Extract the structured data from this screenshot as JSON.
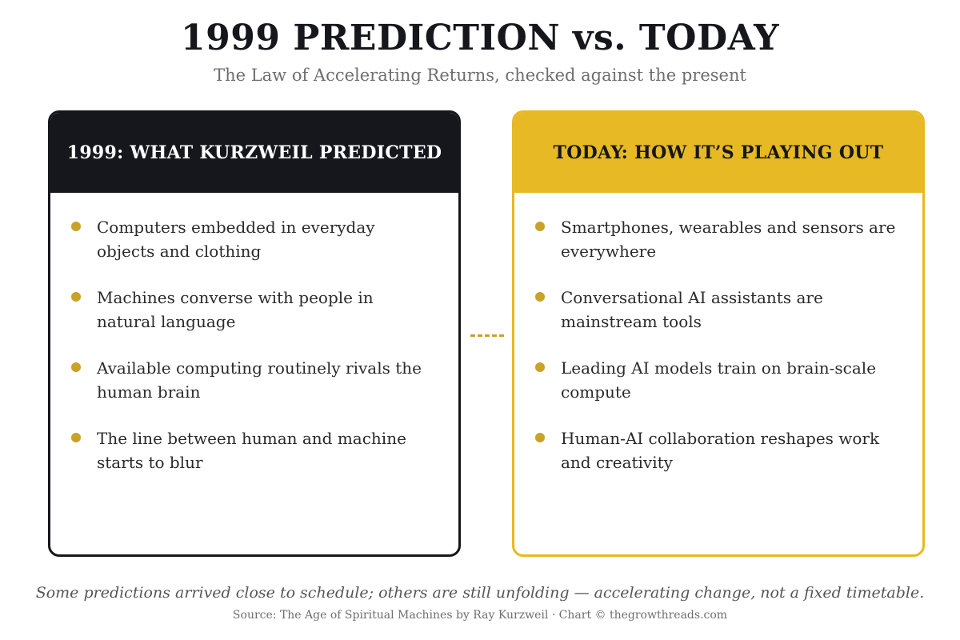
{
  "title": "1999 PREDICTION vs. TODAY",
  "subtitle": "The Law of Accelerating Returns, checked against the present",
  "left_card": {
    "heading": "1999: WHAT KURZWEIL PREDICTED",
    "items": [
      "Computers embedded in everyday objects and clothing",
      "Machines converse with people in natural language",
      "Available computing routinely rivals the human brain",
      "The line between human and machine starts to blur"
    ]
  },
  "right_card": {
    "heading": "TODAY: HOW IT’S PLAYING OUT",
    "items": [
      "Smartphones, wearables and sensors are everywhere",
      "Conversational AI assistants are mainstream tools",
      "Leading AI models train on brain-scale compute",
      "Human-AI collaboration reshapes work and creativity"
    ]
  },
  "footnote": "Some predictions arrived close to schedule; others are still unfolding — accelerating change, not a fixed timetable.",
  "source": "Source: The Age of Spiritual Machines by Ray Kurzweil · Chart © thegrowthreads.com",
  "colors": {
    "dark": "#16171c",
    "accent": "#e6b925",
    "bullet": "#c9a227"
  }
}
